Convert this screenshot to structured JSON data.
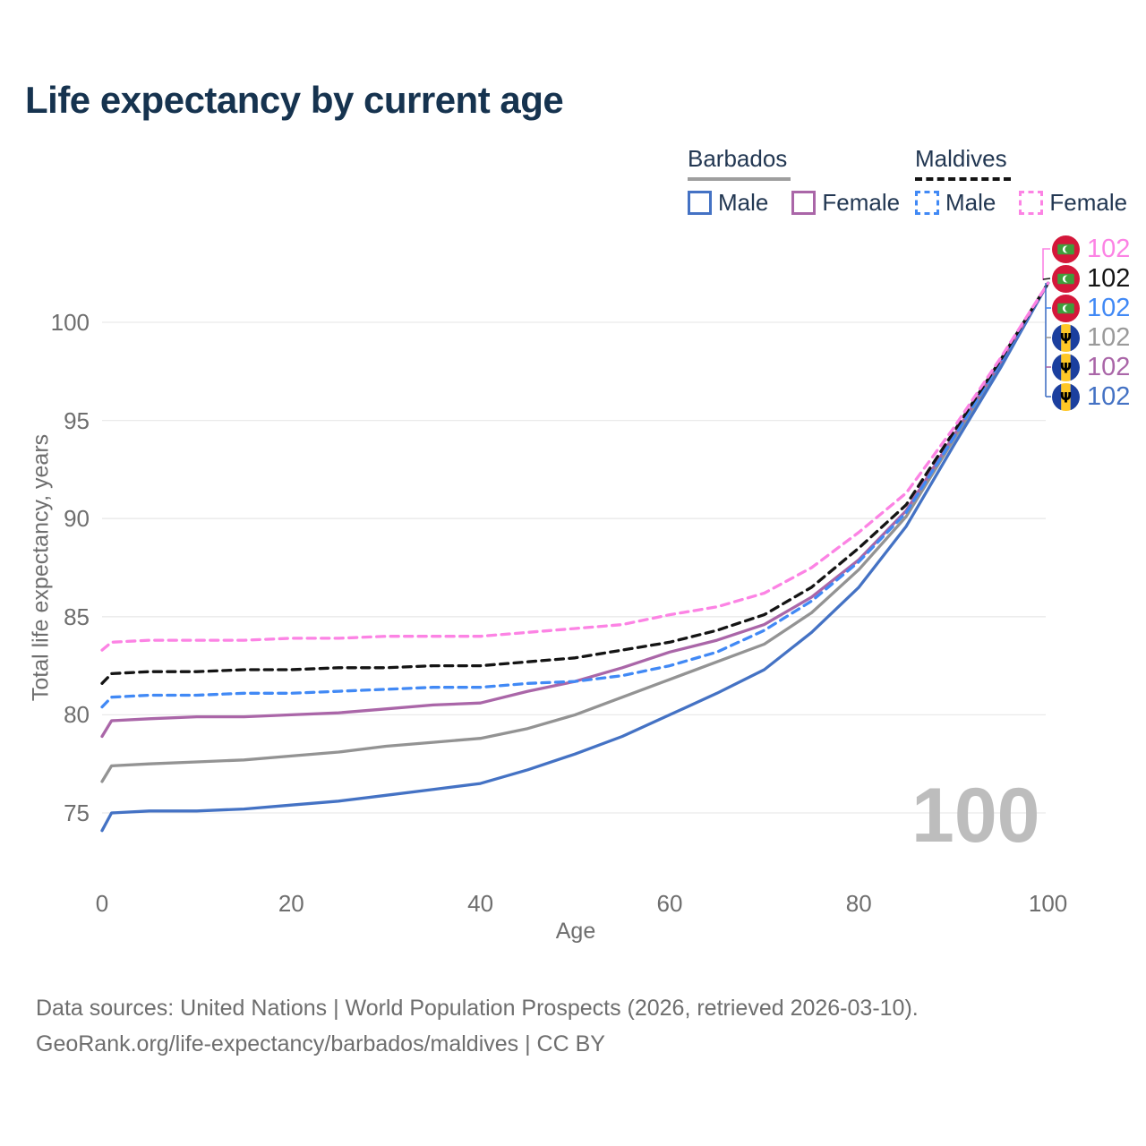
{
  "title": "Life expectancy by current age",
  "legend": {
    "groups": [
      {
        "label": "Barbados",
        "line_style": "solid",
        "underline_color": "#9e9e9e",
        "items": [
          {
            "label": "Male",
            "color": "#4472c4",
            "dashed": false
          },
          {
            "label": "Female",
            "color": "#aa66a8",
            "dashed": false
          }
        ]
      },
      {
        "label": "Maldives",
        "line_style": "dashed",
        "underline_color": "#141414",
        "items": [
          {
            "label": "Male",
            "color": "#4189f5",
            "dashed": true
          },
          {
            "label": "Female",
            "color": "#fc83e4",
            "dashed": true
          }
        ]
      }
    ]
  },
  "chart_data": {
    "type": "line",
    "title": "Life expectancy by current age",
    "xlabel": "Age",
    "ylabel": "Total life expectancy, years",
    "xticks": [
      0,
      20,
      40,
      60,
      80,
      100
    ],
    "yticks": [
      75,
      80,
      85,
      90,
      95,
      100
    ],
    "xlim": [
      0,
      100
    ],
    "ylim": [
      73,
      103
    ],
    "grid": "horizontal",
    "x": [
      0,
      1,
      5,
      10,
      15,
      20,
      25,
      30,
      35,
      40,
      45,
      50,
      55,
      60,
      65,
      70,
      75,
      80,
      85,
      90,
      95,
      100
    ],
    "series": [
      {
        "id": "barbados-both",
        "name": "Barbados",
        "country": "Barbados",
        "sex": "Both",
        "color": "#939393",
        "dashed": false,
        "values": [
          76.6,
          77.4,
          77.5,
          77.6,
          77.7,
          77.9,
          78.1,
          78.4,
          78.6,
          78.8,
          79.3,
          80.0,
          80.9,
          81.8,
          82.7,
          83.6,
          85.2,
          87.4,
          90.1,
          94.0,
          97.9,
          102
        ]
      },
      {
        "id": "barbados-male",
        "name": "Barbados Male",
        "country": "Barbados",
        "sex": "Male",
        "color": "#4472c4",
        "dashed": false,
        "values": [
          74.1,
          75.0,
          75.1,
          75.1,
          75.2,
          75.4,
          75.6,
          75.9,
          76.2,
          76.5,
          77.2,
          78.0,
          78.9,
          80.0,
          81.1,
          82.3,
          84.2,
          86.5,
          89.6,
          93.7,
          97.7,
          102
        ]
      },
      {
        "id": "barbados-female",
        "name": "Barbados Female",
        "country": "Barbados",
        "sex": "Female",
        "color": "#aa66a8",
        "dashed": false,
        "values": [
          78.9,
          79.7,
          79.8,
          79.9,
          79.9,
          80.0,
          80.1,
          80.3,
          80.5,
          80.6,
          81.2,
          81.7,
          82.4,
          83.2,
          83.8,
          84.6,
          86.0,
          87.9,
          90.4,
          94.2,
          98.0,
          102
        ]
      },
      {
        "id": "maldives-male",
        "name": "Maldives Male",
        "country": "Maldives",
        "sex": "Male",
        "color": "#4189f5",
        "dashed": true,
        "values": [
          80.4,
          80.9,
          81.0,
          81.0,
          81.1,
          81.1,
          81.2,
          81.3,
          81.4,
          81.4,
          81.6,
          81.7,
          82.0,
          82.5,
          83.2,
          84.3,
          85.8,
          87.8,
          90.3,
          94.1,
          98.0,
          102
        ]
      },
      {
        "id": "maldives-both",
        "name": "Maldives",
        "country": "Maldives",
        "sex": "Both",
        "color": "#141414",
        "dashed": true,
        "values": [
          81.6,
          82.1,
          82.2,
          82.2,
          82.3,
          82.3,
          82.4,
          82.4,
          82.5,
          82.5,
          82.7,
          82.9,
          83.3,
          83.7,
          84.3,
          85.1,
          86.5,
          88.5,
          90.7,
          94.4,
          98.1,
          102
        ]
      },
      {
        "id": "maldives-female",
        "name": "Maldives Female",
        "country": "Maldives",
        "sex": "Female",
        "color": "#fc83e4",
        "dashed": true,
        "values": [
          83.3,
          83.7,
          83.8,
          83.8,
          83.8,
          83.9,
          83.9,
          84.0,
          84.0,
          84.0,
          84.2,
          84.4,
          84.6,
          85.1,
          85.5,
          86.2,
          87.5,
          89.3,
          91.3,
          94.6,
          98.2,
          102
        ]
      }
    ],
    "end_labels": [
      {
        "flag": "maldives",
        "series": "maldives-female",
        "value": "102",
        "color": "#fc83e4"
      },
      {
        "flag": "maldives",
        "series": "maldives-both",
        "value": "102",
        "color": "#141414"
      },
      {
        "flag": "maldives",
        "series": "maldives-male",
        "value": "102",
        "color": "#4189f5"
      },
      {
        "flag": "barbados",
        "series": "barbados-both",
        "value": "102",
        "color": "#9a9a9a"
      },
      {
        "flag": "barbados",
        "series": "barbados-female",
        "value": "102",
        "color": "#aa66a8"
      },
      {
        "flag": "barbados",
        "series": "barbados-male",
        "value": "102",
        "color": "#4472c4"
      }
    ]
  },
  "watermark": "100",
  "footer": {
    "line1": "Data sources: United Nations | World Population Prospects (2026, retrieved 2026-03-10).",
    "line2": "GeoRank.org/life-expectancy/barbados/maldives | CC BY"
  }
}
